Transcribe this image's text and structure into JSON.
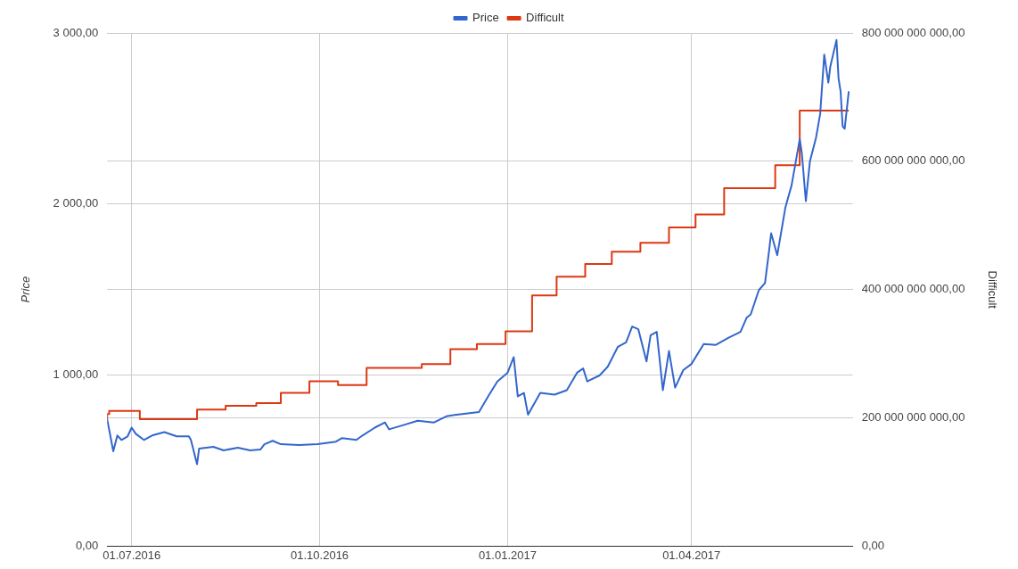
{
  "chart_data": {
    "type": "line",
    "ylabel": "Price",
    "y2label": "Difficult",
    "xlim": [
      "2016-06-19",
      "2017-06-19"
    ],
    "xticks": [
      {
        "value": "2016-07-01",
        "label": "01.07.2016"
      },
      {
        "value": "2016-10-01",
        "label": "01.10.2016"
      },
      {
        "value": "2017-01-01",
        "label": "01.01.2017"
      },
      {
        "value": "2017-04-01",
        "label": "01.04.2017"
      }
    ],
    "ylim": [
      0,
      3000
    ],
    "yticks": [
      {
        "value": 0,
        "label": "0,00"
      },
      {
        "value": 1000,
        "label": "1 000,00"
      },
      {
        "value": 2000,
        "label": "2 000,00"
      },
      {
        "value": 3000,
        "label": "3 000,00"
      }
    ],
    "y2lim": [
      0,
      800000000000
    ],
    "y2ticks": [
      {
        "value": 0,
        "label": "0,00"
      },
      {
        "value": 200000000000,
        "label": "200 000 000 000,00"
      },
      {
        "value": 400000000000,
        "label": "400 000 000 000,00"
      },
      {
        "value": 600000000000,
        "label": "600 000 000 000,00"
      },
      {
        "value": 800000000000,
        "label": "800 000 000 000,00"
      }
    ],
    "grid": true,
    "legend": "top",
    "marker": "none",
    "line_style": "solid",
    "series": [
      {
        "name": "Price",
        "color": "#3366cc",
        "type": "line",
        "x": [
          "2016-06-19",
          "2016-06-22",
          "2016-06-24",
          "2016-06-26",
          "2016-06-29",
          "2016-07-01",
          "2016-07-03",
          "2016-07-07",
          "2016-07-11",
          "2016-07-17",
          "2016-07-23",
          "2016-07-29",
          "2016-07-30",
          "2016-08-02",
          "2016-08-03",
          "2016-08-10",
          "2016-08-15",
          "2016-08-22",
          "2016-08-28",
          "2016-09-02",
          "2016-09-04",
          "2016-09-08",
          "2016-09-12",
          "2016-09-21",
          "2016-09-30",
          "2016-10-09",
          "2016-10-12",
          "2016-10-19",
          "2016-10-22",
          "2016-10-28",
          "2016-11-02",
          "2016-11-04",
          "2016-11-11",
          "2016-11-18",
          "2016-11-26",
          "2016-12-02",
          "2016-12-07",
          "2016-12-18",
          "2016-12-23",
          "2016-12-27",
          "2017-01-01",
          "2017-01-04",
          "2017-01-06",
          "2017-01-09",
          "2017-01-11",
          "2017-01-17",
          "2017-01-24",
          "2017-01-30",
          "2017-02-04",
          "2017-02-07",
          "2017-02-09",
          "2017-02-15",
          "2017-02-19",
          "2017-02-24",
          "2017-02-28",
          "2017-03-03",
          "2017-03-06",
          "2017-03-10",
          "2017-03-12",
          "2017-03-15",
          "2017-03-18",
          "2017-03-21",
          "2017-03-24",
          "2017-03-28",
          "2017-04-01",
          "2017-04-07",
          "2017-04-13",
          "2017-04-19",
          "2017-04-25",
          "2017-04-28",
          "2017-04-30",
          "2017-05-04",
          "2017-05-07",
          "2017-05-09",
          "2017-05-10",
          "2017-05-13",
          "2017-05-17",
          "2017-05-20",
          "2017-05-24",
          "2017-05-25",
          "2017-05-27",
          "2017-05-29",
          "2017-06-01",
          "2017-06-03",
          "2017-06-05",
          "2017-06-07",
          "2017-06-08",
          "2017-06-11",
          "2017-06-12",
          "2017-06-13",
          "2017-06-14",
          "2017-06-15",
          "2017-06-17"
        ],
        "values": [
          743,
          555,
          647,
          621,
          642,
          693,
          657,
          621,
          647,
          667,
          642,
          642,
          621,
          479,
          570,
          581,
          560,
          576,
          560,
          565,
          596,
          616,
          596,
          591,
          596,
          611,
          632,
          621,
          647,
          693,
          723,
          683,
          708,
          733,
          723,
          759,
          769,
          784,
          886,
          963,
          1014,
          1105,
          876,
          896,
          769,
          896,
          886,
          912,
          1014,
          1039,
          963,
          998,
          1049,
          1166,
          1192,
          1284,
          1268,
          1080,
          1233,
          1253,
          912,
          1141,
          927,
          1029,
          1065,
          1182,
          1177,
          1217,
          1253,
          1335,
          1355,
          1497,
          1538,
          1727,
          1829,
          1701,
          1981,
          2109,
          2379,
          2302,
          2017,
          2251,
          2389,
          2526,
          2873,
          2710,
          2806,
          2959,
          2735,
          2659,
          2455,
          2440,
          2659
        ]
      },
      {
        "name": "Difficult",
        "color": "#dc3912",
        "type": "step",
        "axis": "y2",
        "x": [
          "2016-06-19",
          "2016-06-20",
          "2016-07-05",
          "2016-08-02",
          "2016-08-16",
          "2016-08-31",
          "2016-09-12",
          "2016-09-26",
          "2016-10-10",
          "2016-10-24",
          "2016-11-20",
          "2016-12-04",
          "2016-12-17",
          "2016-12-31",
          "2017-01-13",
          "2017-01-25",
          "2017-02-08",
          "2017-02-21",
          "2017-03-07",
          "2017-03-21",
          "2017-04-03",
          "2017-04-17",
          "2017-05-12",
          "2017-05-24",
          "2017-06-06",
          "2017-06-17"
        ],
        "values": [
          198000000000,
          206000000000,
          211000000000,
          198000000000,
          213000000000,
          219000000000,
          223000000000,
          239000000000,
          257000000000,
          251000000000,
          278000000000,
          284000000000,
          307000000000,
          315000000000,
          335000000000,
          391000000000,
          420000000000,
          440000000000,
          459000000000,
          473000000000,
          497000000000,
          517000000000,
          558000000000,
          594000000000,
          679000000000,
          679000000000
        ]
      }
    ]
  }
}
